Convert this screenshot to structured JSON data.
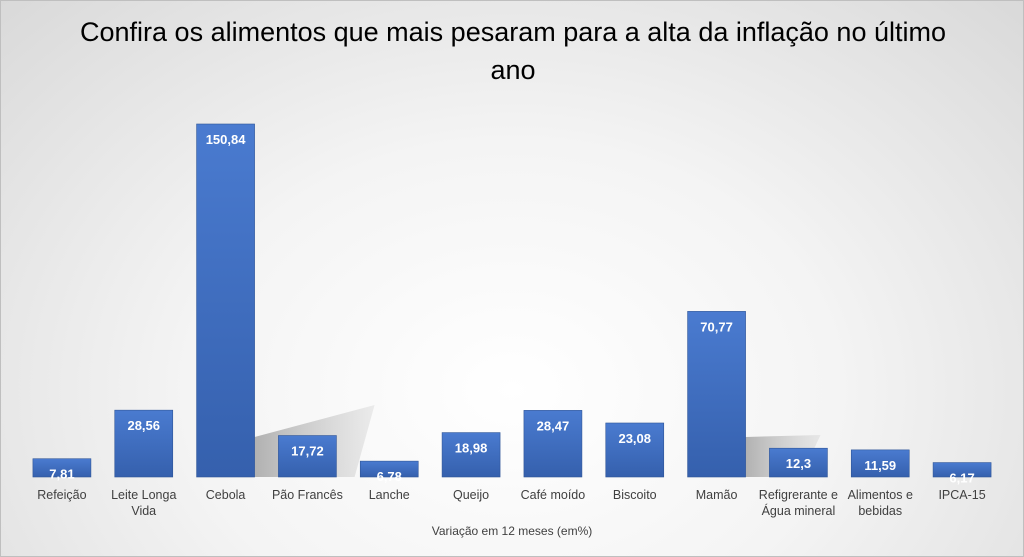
{
  "chart_data": {
    "type": "bar",
    "title": "Confira os alimentos que mais pesaram para a alta da inflação no último ano",
    "xlabel": "Variação em 12 meses (em%)",
    "ylabel": "",
    "categories": [
      [
        "Refeição"
      ],
      [
        "Leite Longa",
        "Vida"
      ],
      [
        "Cebola"
      ],
      [
        "Pão Francês"
      ],
      [
        "Lanche"
      ],
      [
        "Queijo"
      ],
      [
        "Café moído"
      ],
      [
        "Biscoito"
      ],
      [
        "Mamão"
      ],
      [
        "Refigrerante e",
        "Água mineral"
      ],
      [
        "Alimentos e",
        "bebidas"
      ],
      [
        "IPCA-15"
      ]
    ],
    "values": [
      7.81,
      28.56,
      150.84,
      17.72,
      6.78,
      18.98,
      28.47,
      23.08,
      70.77,
      12.3,
      11.59,
      6.17
    ],
    "value_labels": [
      "7,81",
      "28,56",
      "150,84",
      "17,72",
      "6,78",
      "18,98",
      "28,47",
      "23,08",
      "70,77",
      "12,3",
      "11,59",
      "6,17"
    ],
    "ylim": [
      0,
      150.84
    ],
    "grid": false,
    "legend": "none",
    "bar_color": "#4472c4"
  }
}
